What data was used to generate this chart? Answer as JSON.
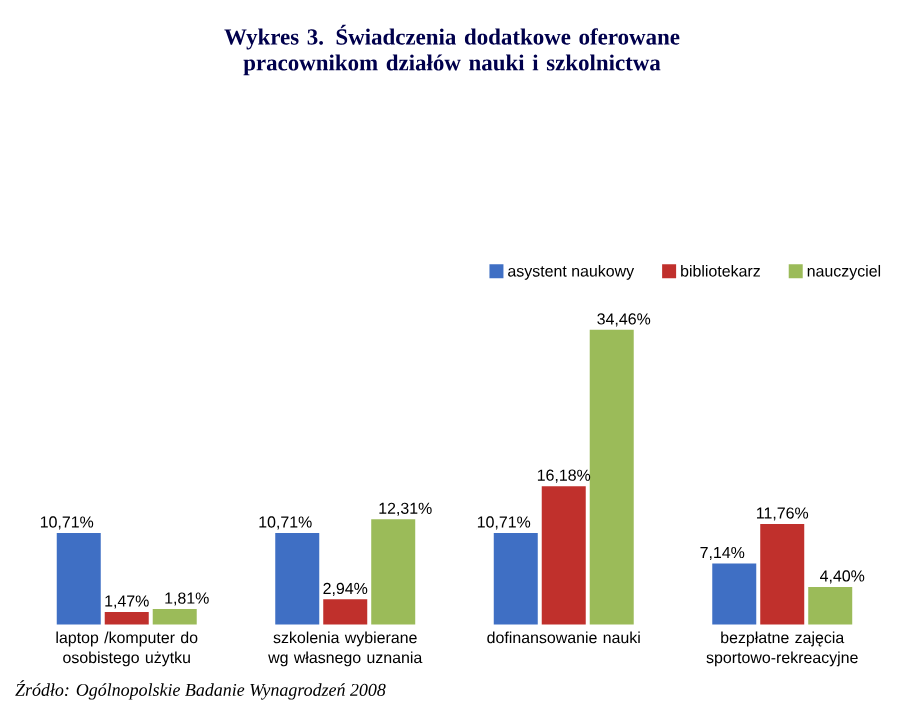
{
  "chart_data": {
    "type": "bar",
    "title": "Wykres 3. Świadczenia dodatkowe oferowane pracownikom działów nauki i szkolnictwa",
    "categories": [
      "laptop /komputer do osobistego użytku",
      "szkolenia wybierane wg własnego uznania",
      "dofinansowanie nauki",
      "bezpłatne zajęcia sportowo-rekreacyjne"
    ],
    "series": [
      {
        "name": "asystent naukowy",
        "color": "#3f6fc4",
        "values": [
          10.71,
          10.71,
          10.71,
          7.14
        ],
        "value_labels": [
          "10,71%",
          "10,71%",
          "10,71%",
          "7,14%"
        ]
      },
      {
        "name": "bibliotekarz",
        "color": "#c0302c",
        "values": [
          1.47,
          2.94,
          16.18,
          11.76
        ],
        "value_labels": [
          "1,47%",
          "2,94%",
          "16,18%",
          "11,76%"
        ]
      },
      {
        "name": "nauczyciel",
        "color": "#9bbb59",
        "values": [
          1.81,
          12.31,
          34.46,
          4.4
        ],
        "value_labels": [
          "1,81%",
          "12,31%",
          "34,46%",
          "4,40%"
        ]
      }
    ],
    "legend": "top right",
    "annotations": [
      "Źródło: Ogólnopolskie Badanie Wynagrodzeń 2008"
    ]
  }
}
